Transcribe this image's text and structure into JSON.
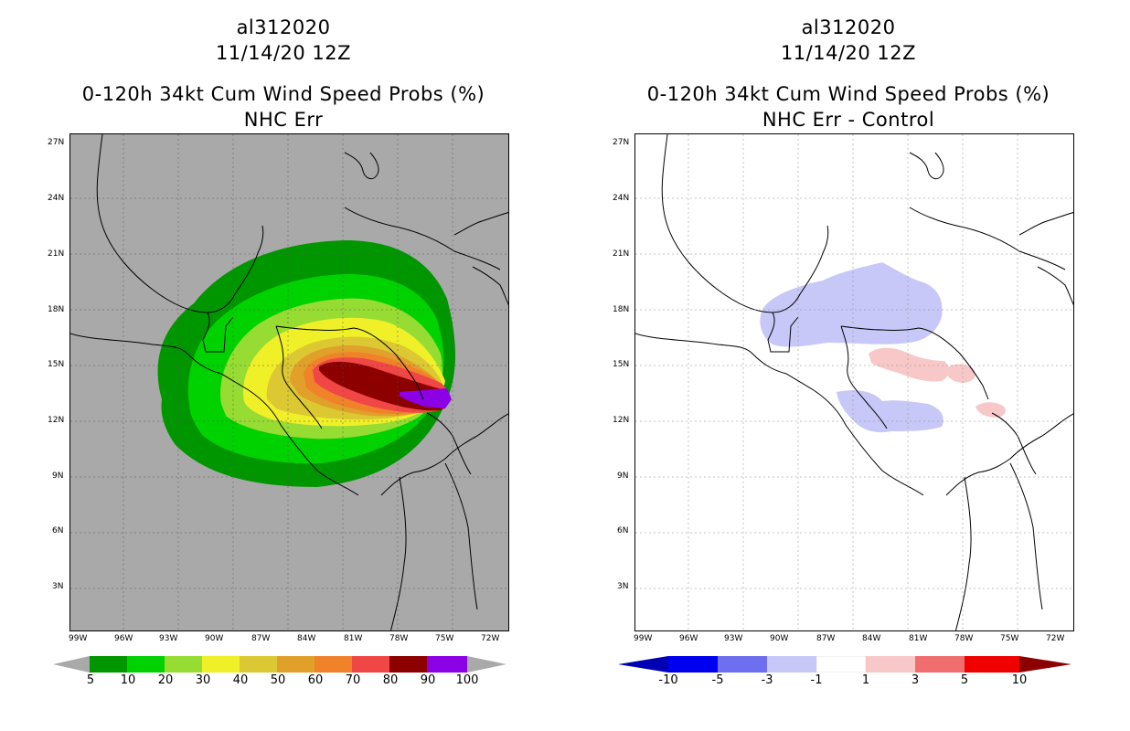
{
  "left_panel": {
    "storm_id": "al312020",
    "datetime": "11/14/20 12Z",
    "product": "0-120h 34kt Cum Wind Speed Probs (%)",
    "subtitle": "NHC Err",
    "legend": [
      {
        "label": "5",
        "color": "#009600"
      },
      {
        "label": "10",
        "color": "#00d200"
      },
      {
        "label": "20",
        "color": "#96dc32"
      },
      {
        "label": "30",
        "color": "#f0f028"
      },
      {
        "label": "40",
        "color": "#dcc832"
      },
      {
        "label": "50",
        "color": "#e0a02a"
      },
      {
        "label": "60",
        "color": "#f0822a"
      },
      {
        "label": "70",
        "color": "#f04646"
      },
      {
        "label": "80",
        "color": "#8c0000"
      },
      {
        "label": "90",
        "color": "#8c00e6"
      },
      {
        "label": "100",
        "color": ""
      }
    ]
  },
  "right_panel": {
    "storm_id": "al312020",
    "datetime": "11/14/20 12Z",
    "product": "0-120h 34kt Cum Wind Speed Probs (%)",
    "subtitle": "NHC Err - Control",
    "legend": [
      {
        "label": "-10",
        "color": "#0000b4"
      },
      {
        "label": "-5",
        "color": "#0000f0"
      },
      {
        "label": "-3",
        "color": "#6e6ef0"
      },
      {
        "label": "-1",
        "color": "#c8c8f8"
      },
      {
        "label": "1",
        "color": "#ffffff"
      },
      {
        "label": "3",
        "color": "#f8c8c8"
      },
      {
        "label": "5",
        "color": "#f06e6e"
      },
      {
        "label": "10",
        "color": "#f00000"
      }
    ]
  },
  "lat_labels": [
    "27N",
    "24N",
    "21N",
    "18N",
    "15N",
    "12N",
    "9N",
    "6N",
    "3N"
  ],
  "lon_labels": [
    "99W",
    "96W",
    "93W",
    "90W",
    "87W",
    "84W",
    "81W",
    "78W",
    "75W",
    "72W"
  ]
}
